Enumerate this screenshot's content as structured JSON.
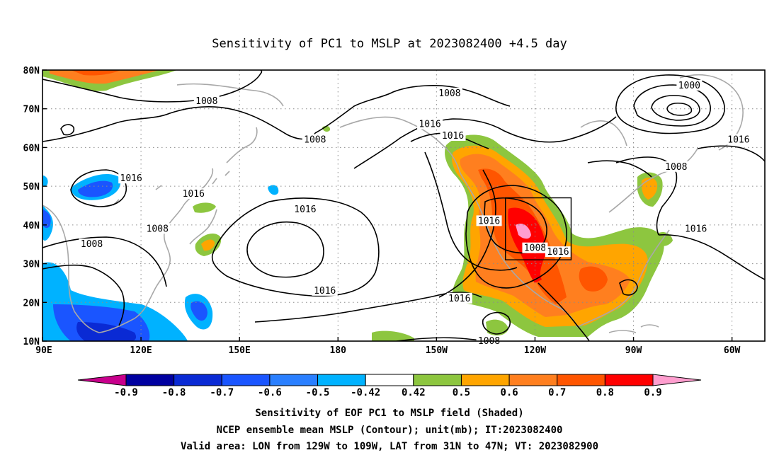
{
  "title": "Sensitivity of PC1 to MSLP at 2023082400 +4.5 day",
  "map": {
    "lon_range": [
      90,
      310
    ],
    "lat_range": [
      10,
      80
    ],
    "x_ticks": [
      {
        "lon": 90,
        "label": "90E"
      },
      {
        "lon": 120,
        "label": "120E"
      },
      {
        "lon": 150,
        "label": "150E"
      },
      {
        "lon": 180,
        "label": "180"
      },
      {
        "lon": 210,
        "label": "150W"
      },
      {
        "lon": 240,
        "label": "120W"
      },
      {
        "lon": 270,
        "label": "90W"
      },
      {
        "lon": 300,
        "label": "60W"
      }
    ],
    "y_ticks": [
      {
        "lat": 10,
        "label": "10N"
      },
      {
        "lat": 20,
        "label": "20N"
      },
      {
        "lat": 30,
        "label": "30N"
      },
      {
        "lat": 40,
        "label": "40N"
      },
      {
        "lat": 50,
        "label": "50N"
      },
      {
        "lat": 60,
        "label": "60N"
      },
      {
        "lat": 70,
        "label": "70N"
      },
      {
        "lat": 80,
        "label": "80N"
      }
    ],
    "gridlines": "dotted",
    "valid_box": {
      "lon": [
        231,
        251
      ],
      "lat": [
        31,
        47
      ]
    },
    "contour_labels": [
      {
        "text": "1008",
        "lon": 140,
        "lat": 72
      },
      {
        "text": "1008",
        "lon": 173,
        "lat": 62
      },
      {
        "text": "1008",
        "lon": 214,
        "lat": 74
      },
      {
        "text": "1000",
        "lon": 287,
        "lat": 76
      },
      {
        "text": "1016",
        "lon": 117,
        "lat": 52
      },
      {
        "text": "1016",
        "lon": 136,
        "lat": 48
      },
      {
        "text": "1008",
        "lon": 125,
        "lat": 39
      },
      {
        "text": "1008",
        "lon": 105,
        "lat": 35
      },
      {
        "text": "1016",
        "lon": 170,
        "lat": 44
      },
      {
        "text": "1016",
        "lon": 176,
        "lat": 23
      },
      {
        "text": "1016",
        "lon": 208,
        "lat": 66
      },
      {
        "text": "1016",
        "lon": 215,
        "lat": 63
      },
      {
        "text": "1016",
        "lon": 226,
        "lat": 41
      },
      {
        "text": "1008",
        "lon": 240,
        "lat": 34
      },
      {
        "text": "1016",
        "lon": 247,
        "lat": 33
      },
      {
        "text": "1016",
        "lon": 217,
        "lat": 21
      },
      {
        "text": "1008",
        "lon": 226,
        "lat": 10
      },
      {
        "text": "1008",
        "lon": 283,
        "lat": 55
      },
      {
        "text": "1016",
        "lon": 302,
        "lat": 62
      },
      {
        "text": "1016",
        "lon": 289,
        "lat": 39
      }
    ]
  },
  "colorbar": {
    "labels": [
      "-0.9",
      "-0.8",
      "-0.7",
      "-0.6",
      "-0.5",
      "-0.42",
      "0.42",
      "0.5",
      "0.6",
      "0.7",
      "0.8",
      "0.9"
    ],
    "colors": [
      "#0000a0",
      "#0a2ad4",
      "#1a55ff",
      "#2a7fff",
      "#00b2ff",
      "#ffffff",
      "#8dc63f",
      "#ffa500",
      "#ff7f1f",
      "#ff5500",
      "#ff0000"
    ],
    "low_end": "#c8008c",
    "high_end": "#ff9ecf"
  },
  "caption": {
    "line1": "Sensitivity of EOF PC1 to MSLP field (Shaded)",
    "line2": "NCEP ensemble mean MSLP (Contour); unit(mb); IT:2023082400",
    "line3": "Valid area: LON from 129W to 109W, LAT from 31N to 47N; VT: 2023082900"
  }
}
